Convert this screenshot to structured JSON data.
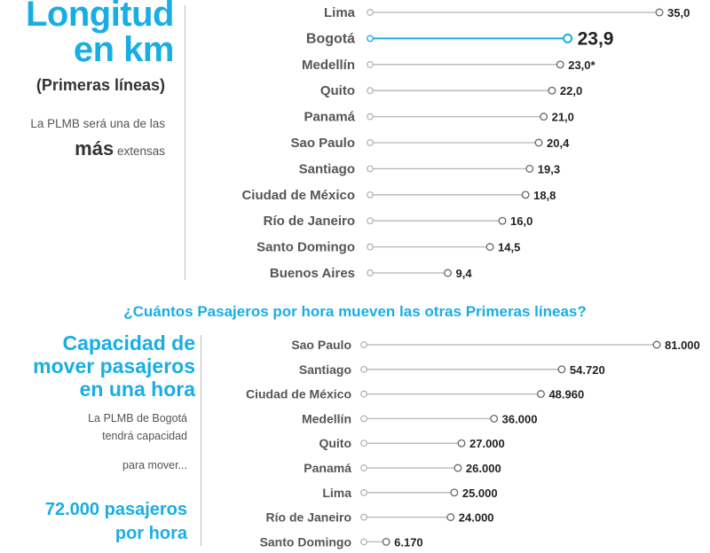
{
  "left_panel_1": {
    "title_line1": "Longitud",
    "title_line2": "en km",
    "subtitle": "(Primeras líneas)",
    "desc_line1": "La PLMB será una de las",
    "desc_emph": "más",
    "desc_tail": "extensas"
  },
  "question": "¿Cuántos Pasajeros por hora mueven las otras Primeras líneas?",
  "left_panel_2": {
    "title_line1": "Capacidad de",
    "title_line2": "mover pasajeros",
    "title_line3": "en una hora",
    "desc_line1": "La PLMB de Bogotá",
    "desc_line2": "tendrá capacidad",
    "desc_line3": "para mover...",
    "highlight_line1": "72.000 pasajeros",
    "highlight_line2": "por hora"
  },
  "colors": {
    "accent": "#19aee3",
    "line": "#b5b5b5",
    "text": "#555555"
  },
  "chart_data": [
    {
      "type": "lollipop",
      "title": "Longitud en km",
      "subtitle": "(Primeras líneas)",
      "categories": [
        "Lima",
        "Bogotá",
        "Medellín",
        "Quito",
        "Panamá",
        "Sao Paulo",
        "Santiago",
        "Ciudad de México",
        "Río de Janeiro",
        "Santo Domingo",
        "Buenos Aires"
      ],
      "values": [
        35.0,
        23.9,
        23.0,
        22.0,
        21.0,
        20.4,
        19.3,
        18.8,
        16.0,
        14.5,
        9.4
      ],
      "labels": [
        "35,0",
        "23,9",
        "23,0*",
        "22,0",
        "21,0",
        "20,4",
        "19,3",
        "18,8",
        "16,0",
        "14,5",
        "9,4"
      ],
      "highlight": "Bogotá",
      "xlim": [
        0,
        35
      ]
    },
    {
      "type": "lollipop",
      "title": "¿Cuántos Pasajeros por hora mueven las otras Primeras líneas?",
      "categories": [
        "Sao Paulo",
        "Santiago",
        "Ciudad de México",
        "Medellín",
        "Quito",
        "Panamá",
        "Lima",
        "Río de Janeiro",
        "Santo Domingo"
      ],
      "values": [
        81000,
        54720,
        48960,
        36000,
        27000,
        26000,
        25000,
        24000,
        6170
      ],
      "labels": [
        "81.000",
        "54.720",
        "48.960",
        "36.000",
        "27.000",
        "26.000",
        "25.000",
        "24.000",
        "6.170"
      ],
      "xlim": [
        0,
        81000
      ]
    }
  ]
}
